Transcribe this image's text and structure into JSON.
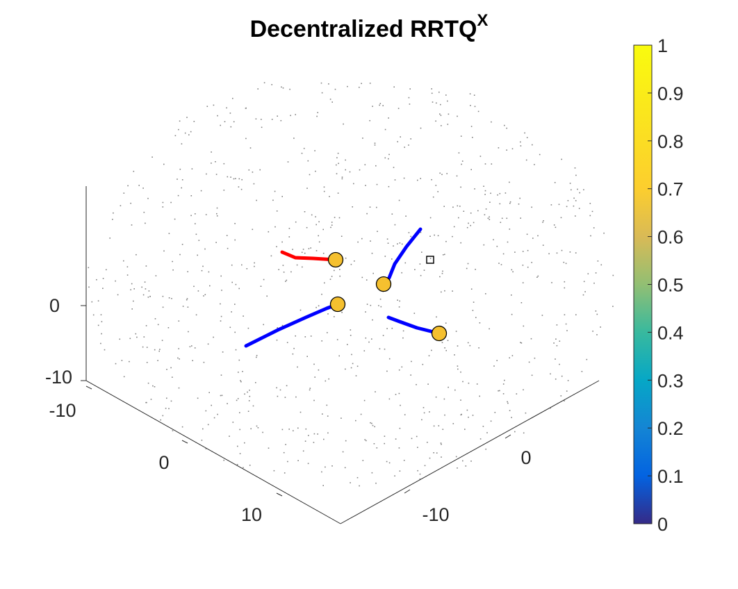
{
  "chart_data": {
    "type": "scatter",
    "title": "Decentralized RRTQ",
    "title_superscript": "X",
    "view": "3d",
    "axes": {
      "x": {
        "ticks": [
          -10,
          0,
          10
        ],
        "tick_labels": [
          "-10",
          "0",
          "10"
        ]
      },
      "y": {
        "ticks": [
          -10,
          0
        ],
        "tick_labels": [
          "-10",
          "0"
        ]
      },
      "z": {
        "ticks": [
          -10,
          0
        ],
        "tick_labels": [
          "-10",
          "0"
        ]
      }
    },
    "colorbar": {
      "colormap": "parula",
      "range": [
        0,
        1
      ],
      "ticks": [
        0,
        0.1,
        0.2,
        0.3,
        0.4,
        0.5,
        0.6,
        0.7,
        0.8,
        0.9,
        1
      ],
      "tick_labels": [
        "0",
        "0.1",
        "0.2",
        "0.3",
        "0.4",
        "0.5",
        "0.6",
        "0.7",
        "0.8",
        "0.9",
        "1"
      ]
    },
    "agents": [
      {
        "color": "#f5c02f",
        "trail_color": "#ff0000",
        "trail": [
          [
            406,
            363
          ],
          [
            425,
            371
          ],
          [
            450,
            372
          ],
          [
            483,
            374
          ]
        ]
      },
      {
        "color": "#f5c02f",
        "trail_color": "#0000ff",
        "trail": [
          [
            605,
            330
          ],
          [
            585,
            355
          ],
          [
            568,
            380
          ],
          [
            560,
            400
          ],
          [
            552,
            409
          ]
        ]
      },
      {
        "color": "#f5c02f",
        "trail_color": "#0000ff",
        "trail": [
          [
            354,
            498
          ],
          [
            400,
            475
          ],
          [
            440,
            457
          ],
          [
            470,
            444
          ],
          [
            486,
            438
          ]
        ]
      },
      {
        "color": "#f5c02f",
        "trail_color": "#0000ff",
        "trail": [
          [
            559,
            457
          ],
          [
            575,
            463
          ],
          [
            600,
            472
          ],
          [
            632,
            480
          ]
        ]
      }
    ],
    "goal_marker": {
      "shape": "square",
      "color": "#000000"
    },
    "point_cloud": {
      "color": "#808080",
      "count": 900
    },
    "grid": false
  }
}
